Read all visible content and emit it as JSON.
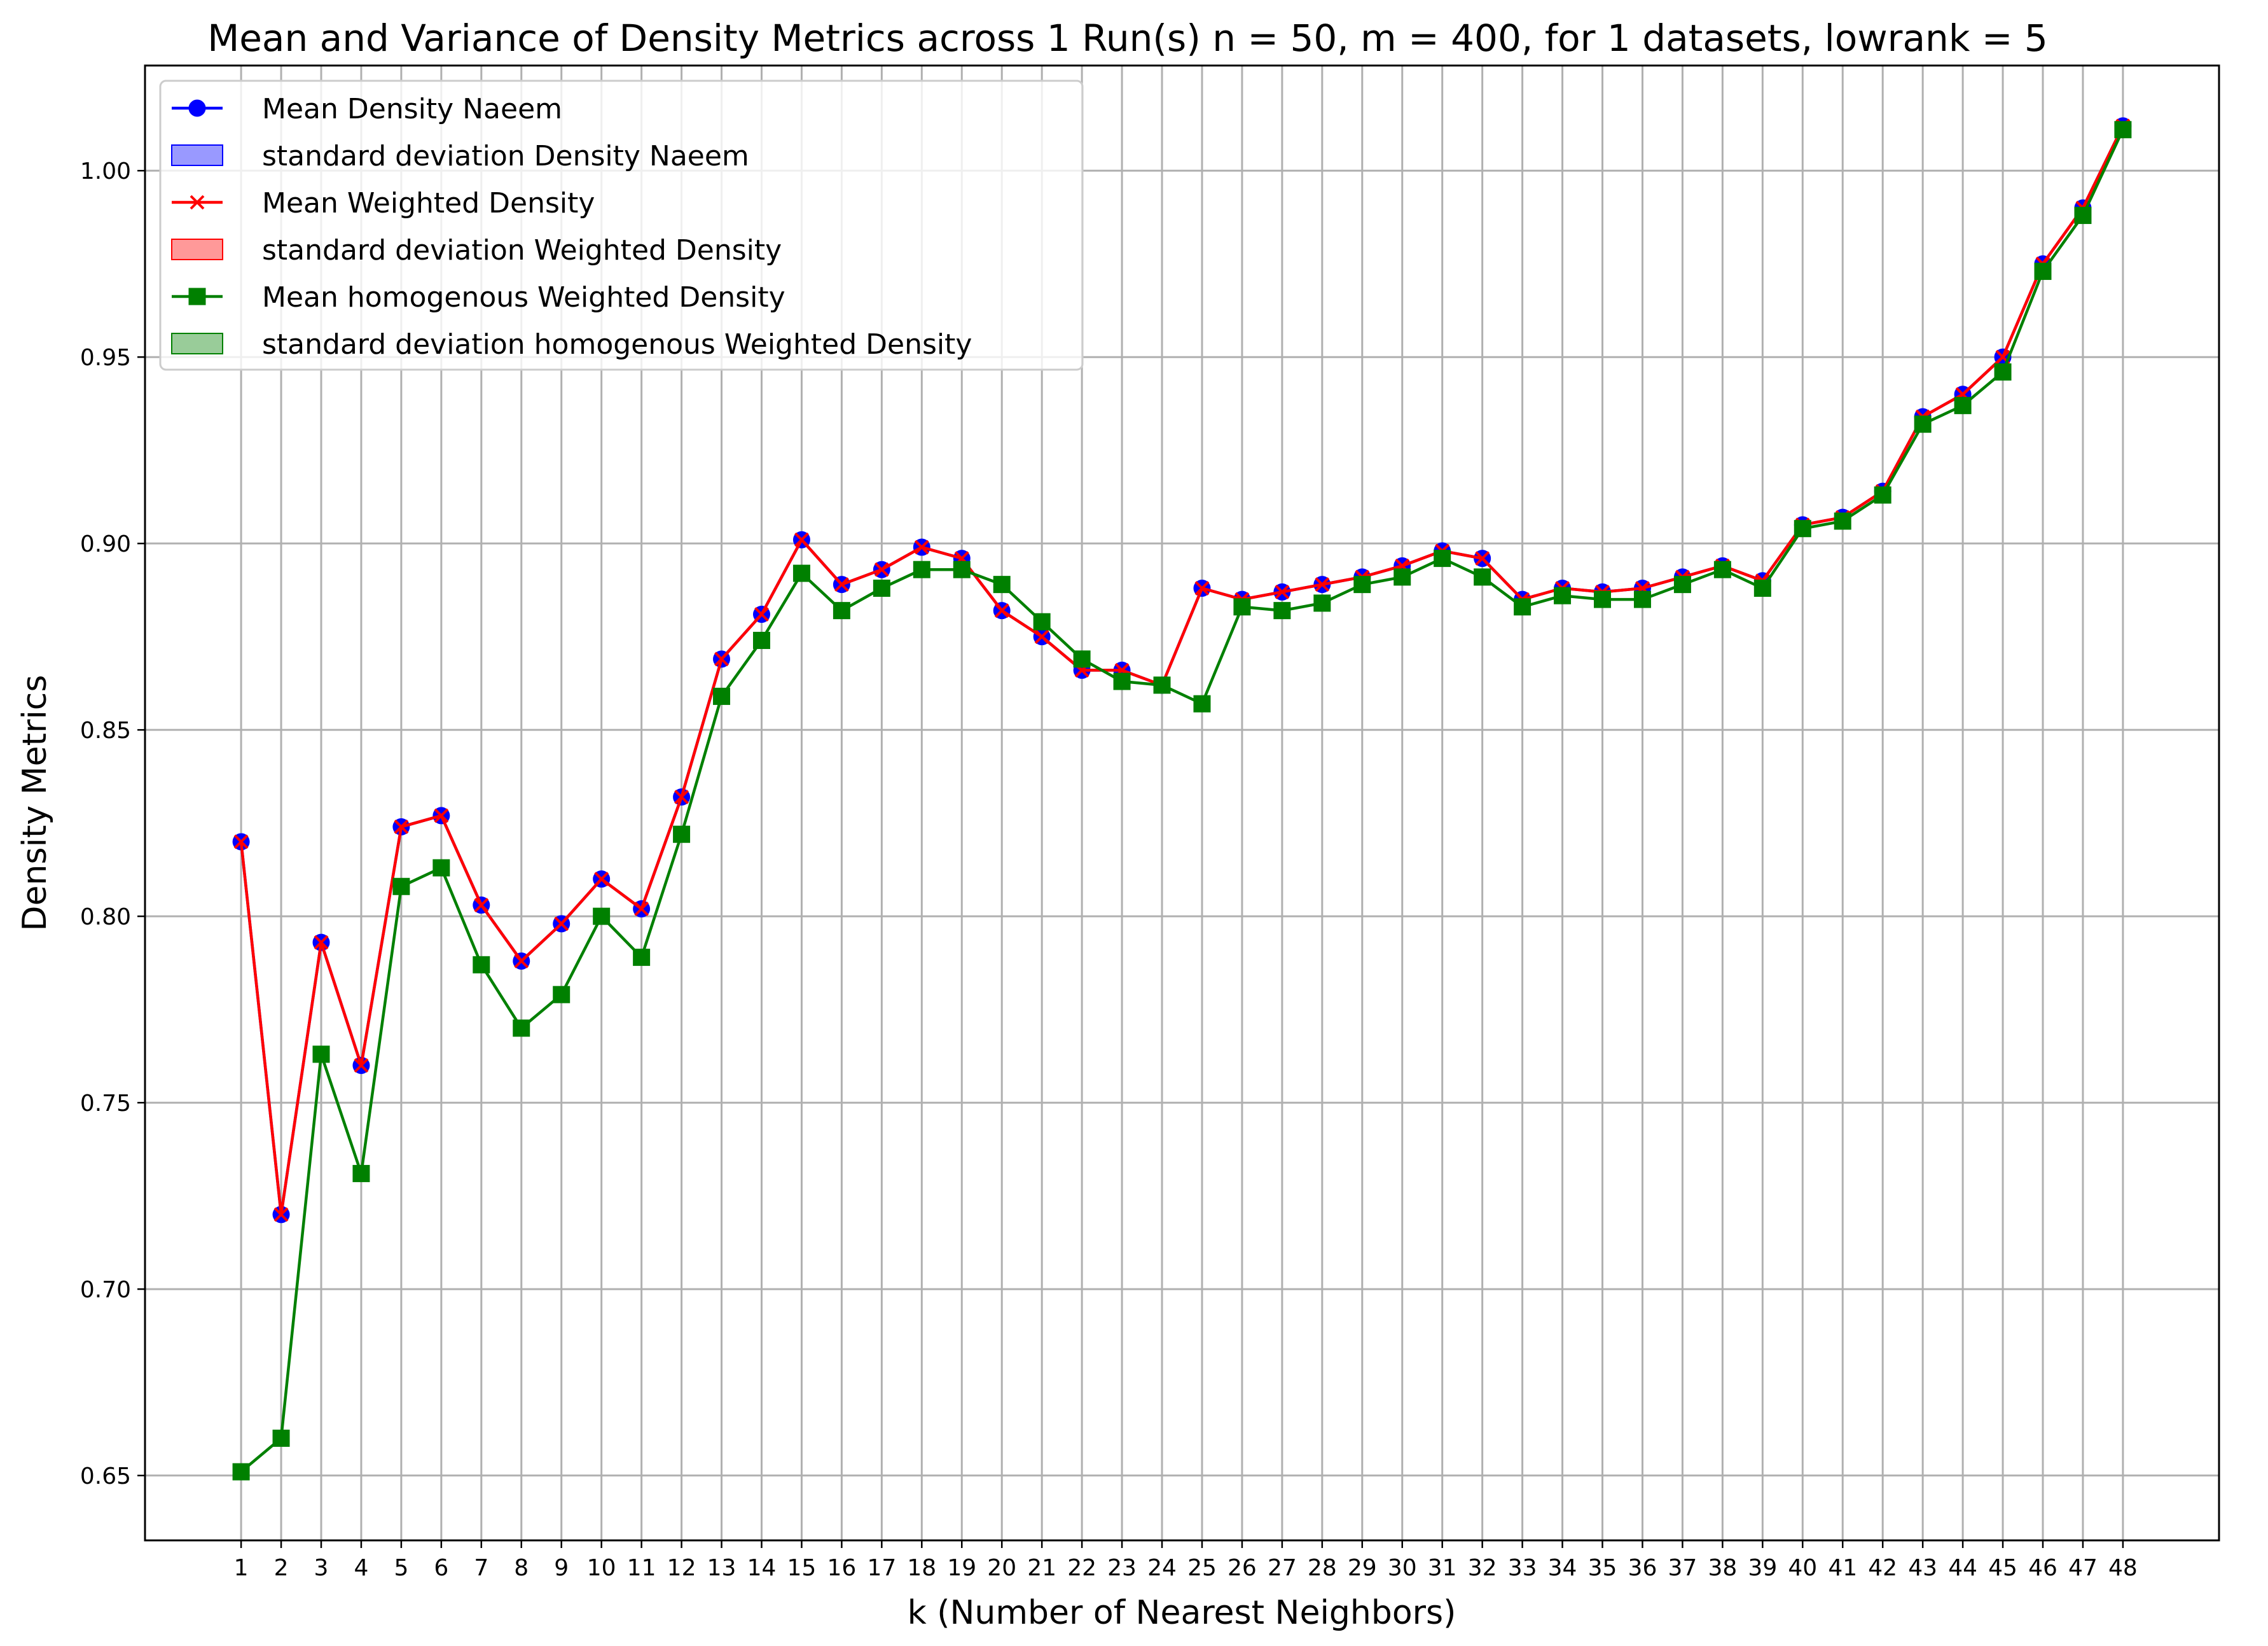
{
  "chart_data": {
    "type": "line",
    "title": "Mean and Variance of Density Metrics across 1 Run(s) n  = 50, m  = 400, for 1 datasets, lowrank = 5",
    "xlabel": "k (Number of Nearest Neighbors)",
    "ylabel": "Density Metrics",
    "xlim": [
      -1.4,
      50.4
    ],
    "ylim": [
      0.6326,
      1.0282
    ],
    "grid": true,
    "legend_position": "top-left",
    "x": [
      1,
      2,
      3,
      4,
      5,
      6,
      7,
      8,
      9,
      10,
      11,
      12,
      13,
      14,
      15,
      16,
      17,
      18,
      19,
      20,
      21,
      22,
      23,
      24,
      25,
      26,
      27,
      28,
      29,
      30,
      31,
      32,
      33,
      34,
      35,
      36,
      37,
      38,
      39,
      40,
      41,
      42,
      43,
      44,
      45,
      46,
      47,
      48
    ],
    "x_tick_labels": [
      "1",
      "2",
      "3",
      "4",
      "5",
      "6",
      "7",
      "8",
      "9",
      "10",
      "11",
      "12",
      "13",
      "14",
      "15",
      "16",
      "17",
      "18",
      "19",
      "20",
      "21",
      "22",
      "23",
      "24",
      "25",
      "26",
      "27",
      "28",
      "29",
      "30",
      "31",
      "32",
      "33",
      "34",
      "35",
      "36",
      "37",
      "38",
      "39",
      "40",
      "41",
      "42",
      "43",
      "44",
      "45",
      "46",
      "47",
      "48"
    ],
    "y_ticks": [
      0.65,
      0.7,
      0.75,
      0.8,
      0.85,
      0.9,
      0.95,
      1.0
    ],
    "y_tick_labels": [
      "0.65",
      "0.70",
      "0.75",
      "0.80",
      "0.85",
      "0.90",
      "0.95",
      "1.00"
    ],
    "series": [
      {
        "name": "Mean Density Naeem",
        "color": "#0000ff",
        "marker": "circle",
        "values": [
          0.82,
          0.72,
          0.793,
          0.76,
          0.824,
          0.827,
          0.803,
          0.788,
          0.798,
          0.81,
          0.802,
          0.832,
          0.869,
          0.881,
          0.901,
          0.889,
          0.893,
          0.899,
          0.896,
          0.882,
          0.875,
          0.866,
          0.866,
          0.862,
          0.888,
          0.885,
          0.887,
          0.889,
          0.891,
          0.894,
          0.898,
          0.896,
          0.885,
          0.888,
          0.887,
          0.888,
          0.891,
          0.894,
          0.89,
          0.905,
          0.907,
          0.914,
          0.934,
          0.94,
          0.95,
          0.975,
          0.99,
          1.012
        ]
      },
      {
        "name": "Mean Weighted Density",
        "color": "#ff0000",
        "marker": "x",
        "values": [
          0.82,
          0.72,
          0.793,
          0.76,
          0.824,
          0.827,
          0.803,
          0.788,
          0.798,
          0.81,
          0.802,
          0.832,
          0.869,
          0.881,
          0.901,
          0.889,
          0.893,
          0.899,
          0.896,
          0.882,
          0.875,
          0.866,
          0.866,
          0.862,
          0.888,
          0.885,
          0.887,
          0.889,
          0.891,
          0.894,
          0.898,
          0.896,
          0.885,
          0.888,
          0.887,
          0.888,
          0.891,
          0.894,
          0.89,
          0.905,
          0.907,
          0.914,
          0.934,
          0.94,
          0.95,
          0.975,
          0.99,
          1.012
        ]
      },
      {
        "name": "Mean homogenous Weighted Density",
        "color": "#008000",
        "marker": "square",
        "values": [
          0.651,
          0.66,
          0.763,
          0.731,
          0.808,
          0.813,
          0.787,
          0.77,
          0.779,
          0.8,
          0.789,
          0.822,
          0.859,
          0.874,
          0.892,
          0.882,
          0.888,
          0.893,
          0.893,
          0.889,
          0.879,
          0.869,
          0.863,
          0.862,
          0.857,
          0.883,
          0.882,
          0.884,
          0.889,
          0.891,
          0.896,
          0.891,
          0.883,
          0.886,
          0.885,
          0.885,
          0.889,
          0.893,
          0.888,
          0.904,
          0.906,
          0.913,
          0.932,
          0.937,
          0.946,
          0.973,
          0.988,
          1.011
        ]
      }
    ],
    "legend": [
      {
        "label": "Mean Density Naeem",
        "kind": "line",
        "color": "#0000ff",
        "marker": "circle"
      },
      {
        "label": "standard deviation Density Naeem",
        "kind": "patch",
        "color": "#9999ff",
        "edge": "#0000ff"
      },
      {
        "label": "Mean Weighted Density",
        "kind": "line",
        "color": "#ff0000",
        "marker": "x"
      },
      {
        "label": "standard deviation Weighted Density",
        "kind": "patch",
        "color": "#ff9999",
        "edge": "#ff0000"
      },
      {
        "label": "Mean homogenous Weighted Density",
        "kind": "line",
        "color": "#008000",
        "marker": "square"
      },
      {
        "label": "standard deviation homogenous Weighted Density",
        "kind": "patch",
        "color": "#99cc99",
        "edge": "#008000"
      }
    ]
  }
}
